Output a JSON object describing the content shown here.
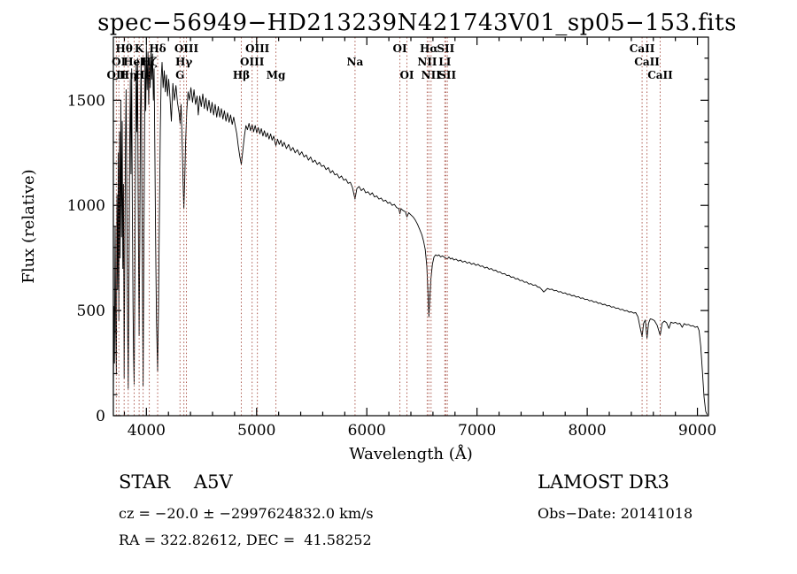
{
  "annotations": {
    "class_label": "STAR    A5V",
    "survey": "LAMOST DR3",
    "cz_line": "cz = −20.0 ± −2997624832.0 km/s",
    "obs_date": "Obs−Date: 20141018",
    "ra_dec": "RA = 322.82612, DEC =  41.58252"
  },
  "chart_data": {
    "type": "line",
    "title": "spec−56949−HD213239N421743V01_sp05−153.fits",
    "xlabel": "Wavelength (Å)",
    "ylabel": "Flux (relative)",
    "xlim": [
      3700,
      9100
    ],
    "ylim": [
      0,
      1800
    ],
    "xticks": [
      4000,
      5000,
      6000,
      7000,
      8000,
      9000
    ],
    "yticks": [
      0,
      500,
      1000,
      1500
    ],
    "x_minor_step": 200,
    "y_minor_step": 100,
    "grid": false,
    "legend": "none",
    "line_color": "#000000",
    "marker_line_color": "#a4493d",
    "spectral_lines": [
      {
        "wavelength": 3727,
        "label": "OII",
        "row": 3
      },
      {
        "wavelength": 3750,
        "label": "OI",
        "row": 2
      },
      {
        "wavelength": 3798,
        "label": "Hθ",
        "row": 1
      },
      {
        "wavelength": 3835,
        "label": "Hη",
        "row": 3
      },
      {
        "wavelength": 3889,
        "label": "HeI",
        "row": 2
      },
      {
        "wavelength": 3934,
        "label": "K",
        "row": 1
      },
      {
        "wavelength": 3970,
        "label": "Hε",
        "row": 3
      },
      {
        "wavelength": 4026,
        "label": "Hζ",
        "row": 2
      },
      {
        "wavelength": 4102,
        "label": "Hδ",
        "row": 1
      },
      {
        "wavelength": 4305,
        "label": "G",
        "row": 3
      },
      {
        "wavelength": 4340,
        "label": "Hγ",
        "row": 2
      },
      {
        "wavelength": 4363,
        "label": "OIII",
        "row": 1
      },
      {
        "wavelength": 4861,
        "label": "Hβ",
        "row": 3
      },
      {
        "wavelength": 4959,
        "label": "OIII",
        "row": 2
      },
      {
        "wavelength": 5007,
        "label": "OIII",
        "row": 1
      },
      {
        "wavelength": 5175,
        "label": "Mg",
        "row": 3
      },
      {
        "wavelength": 5893,
        "label": "Na",
        "row": 2
      },
      {
        "wavelength": 6300,
        "label": "OI",
        "row": 1
      },
      {
        "wavelength": 6364,
        "label": "OI",
        "row": 3
      },
      {
        "wavelength": 6548,
        "label": "NII",
        "row": 2
      },
      {
        "wavelength": 6563,
        "label": "Hα",
        "row": 1
      },
      {
        "wavelength": 6583,
        "label": "NII",
        "row": 3
      },
      {
        "wavelength": 6708,
        "label": "LI",
        "row": 2
      },
      {
        "wavelength": 6716,
        "label": "SII",
        "row": 1
      },
      {
        "wavelength": 6731,
        "label": "SII",
        "row": 3
      },
      {
        "wavelength": 8498,
        "label": "CaII",
        "row": 1
      },
      {
        "wavelength": 8542,
        "label": "CaII",
        "row": 2
      },
      {
        "wavelength": 8662,
        "label": "CaII",
        "row": 3
      }
    ],
    "x": [
      3700,
      3705,
      3710,
      3716,
      3722,
      3727,
      3733,
      3739,
      3745,
      3750,
      3756,
      3762,
      3768,
      3774,
      3780,
      3786,
      3792,
      3798,
      3804,
      3810,
      3816,
      3822,
      3828,
      3835,
      3842,
      3848,
      3854,
      3860,
      3866,
      3872,
      3878,
      3883,
      3889,
      3895,
      3901,
      3907,
      3913,
      3919,
      3925,
      3931,
      3934,
      3940,
      3946,
      3952,
      3958,
      3964,
      3970,
      3976,
      3982,
      3988,
      3994,
      4000,
      4007,
      4014,
      4021,
      4028,
      4035,
      4042,
      4049,
      4056,
      4063,
      4070,
      4077,
      4084,
      4091,
      4102,
      4110,
      4118,
      4126,
      4134,
      4142,
      4152,
      4162,
      4172,
      4182,
      4192,
      4202,
      4212,
      4226,
      4240,
      4254,
      4268,
      4282,
      4296,
      4305,
      4315,
      4325,
      4333,
      4340,
      4348,
      4356,
      4366,
      4378,
      4390,
      4404,
      4418,
      4432,
      4446,
      4460,
      4471,
      4484,
      4498,
      4512,
      4526,
      4540,
      4554,
      4568,
      4582,
      4596,
      4610,
      4624,
      4638,
      4652,
      4666,
      4680,
      4694,
      4708,
      4722,
      4736,
      4750,
      4764,
      4778,
      4792,
      4806,
      4820,
      4834,
      4848,
      4861,
      4875,
      4889,
      4903,
      4917,
      4931,
      4945,
      4959,
      4973,
      4987,
      5001,
      5015,
      5029,
      5043,
      5057,
      5071,
      5085,
      5099,
      5113,
      5127,
      5141,
      5155,
      5169,
      5175,
      5190,
      5205,
      5220,
      5235,
      5250,
      5270,
      5290,
      5310,
      5330,
      5350,
      5370,
      5390,
      5410,
      5430,
      5450,
      5470,
      5490,
      5510,
      5530,
      5550,
      5570,
      5590,
      5610,
      5630,
      5650,
      5670,
      5690,
      5710,
      5730,
      5750,
      5770,
      5790,
      5810,
      5830,
      5850,
      5870,
      5893,
      5910,
      5930,
      5950,
      5970,
      5990,
      6010,
      6030,
      6050,
      6070,
      6090,
      6110,
      6130,
      6150,
      6170,
      6190,
      6210,
      6230,
      6250,
      6270,
      6290,
      6300,
      6310,
      6330,
      6350,
      6364,
      6380,
      6400,
      6420,
      6440,
      6460,
      6480,
      6500,
      6515,
      6530,
      6545,
      6555,
      6563,
      6572,
      6582,
      6595,
      6610,
      6625,
      6640,
      6655,
      6670,
      6685,
      6700,
      6715,
      6730,
      6745,
      6760,
      6775,
      6790,
      6810,
      6830,
      6850,
      6870,
      6890,
      6910,
      6930,
      6950,
      6970,
      6990,
      7010,
      7030,
      7050,
      7070,
      7090,
      7110,
      7130,
      7150,
      7170,
      7190,
      7210,
      7230,
      7250,
      7270,
      7290,
      7310,
      7330,
      7350,
      7370,
      7390,
      7410,
      7430,
      7450,
      7470,
      7490,
      7510,
      7530,
      7550,
      7570,
      7590,
      7605,
      7620,
      7640,
      7660,
      7680,
      7700,
      7720,
      7740,
      7760,
      7780,
      7800,
      7820,
      7840,
      7860,
      7880,
      7900,
      7920,
      7940,
      7960,
      7980,
      8000,
      8020,
      8040,
      8060,
      8080,
      8100,
      8120,
      8140,
      8160,
      8180,
      8200,
      8220,
      8240,
      8260,
      8280,
      8300,
      8320,
      8340,
      8360,
      8380,
      8400,
      8420,
      8440,
      8460,
      8480,
      8498,
      8512,
      8527,
      8542,
      8557,
      8572,
      8590,
      8610,
      8635,
      8662,
      8680,
      8700,
      8720,
      8742,
      8760,
      8780,
      8800,
      8820,
      8840,
      8862,
      8880,
      8900,
      8920,
      8940,
      8960,
      8980,
      9000,
      9015,
      9030,
      9045,
      9060,
      9075,
      9088
    ],
    "y": [
      80,
      520,
      250,
      900,
      400,
      200,
      1050,
      600,
      1250,
      450,
      1350,
      750,
      1500,
      850,
      1400,
      700,
      1100,
      180,
      750,
      1300,
      1550,
      1000,
      550,
      130,
      700,
      1250,
      1600,
      1150,
      1650,
      1000,
      520,
      300,
      150,
      650,
      1200,
      1680,
      1350,
      1700,
      1050,
      600,
      380,
      850,
      1450,
      1700,
      1150,
      620,
      140,
      680,
      1250,
      1700,
      1450,
      1760,
      1550,
      1730,
      1480,
      1700,
      1560,
      1750,
      1600,
      1720,
      1500,
      1650,
      1250,
      800,
      450,
      210,
      520,
      950,
      1350,
      1600,
      1680,
      1560,
      1640,
      1540,
      1620,
      1520,
      1600,
      1530,
      1400,
      1580,
      1500,
      1570,
      1490,
      1440,
      1390,
      1480,
      1280,
      1100,
      985,
      1120,
      1300,
      1450,
      1540,
      1500,
      1560,
      1490,
      1550,
      1480,
      1520,
      1430,
      1520,
      1470,
      1530,
      1460,
      1510,
      1450,
      1500,
      1440,
      1490,
      1430,
      1480,
      1420,
      1470,
      1420,
      1460,
      1410,
      1450,
      1400,
      1440,
      1395,
      1430,
      1385,
      1420,
      1380,
      1340,
      1280,
      1230,
      1195,
      1260,
      1330,
      1380,
      1360,
      1390,
      1355,
      1385,
      1350,
      1380,
      1345,
      1370,
      1340,
      1365,
      1330,
      1355,
      1325,
      1345,
      1315,
      1340,
      1310,
      1330,
      1295,
      1285,
      1315,
      1290,
      1310,
      1280,
      1300,
      1270,
      1290,
      1260,
      1275,
      1250,
      1265,
      1240,
      1255,
      1230,
      1240,
      1215,
      1230,
      1205,
      1215,
      1195,
      1205,
      1185,
      1190,
      1170,
      1180,
      1155,
      1165,
      1145,
      1150,
      1130,
      1140,
      1120,
      1125,
      1105,
      1110,
      1085,
      1030,
      1080,
      1090,
      1070,
      1080,
      1060,
      1065,
      1050,
      1060,
      1040,
      1045,
      1030,
      1035,
      1020,
      1025,
      1010,
      1015,
      1000,
      1005,
      990,
      985,
      960,
      985,
      975,
      970,
      945,
      965,
      955,
      945,
      930,
      910,
      885,
      860,
      830,
      790,
      710,
      580,
      470,
      560,
      650,
      720,
      755,
      765,
      760,
      765,
      755,
      760,
      755,
      750,
      745,
      755,
      745,
      750,
      740,
      745,
      735,
      740,
      730,
      735,
      725,
      730,
      720,
      725,
      715,
      720,
      710,
      712,
      702,
      706,
      696,
      700,
      690,
      692,
      682,
      684,
      674,
      676,
      666,
      668,
      658,
      660,
      650,
      652,
      642,
      644,
      634,
      636,
      626,
      628,
      620,
      622,
      612,
      610,
      598,
      588,
      595,
      605,
      600,
      602,
      594,
      596,
      588,
      590,
      582,
      584,
      576,
      578,
      570,
      572,
      564,
      566,
      558,
      560,
      552,
      554,
      546,
      548,
      540,
      542,
      534,
      536,
      528,
      530,
      522,
      524,
      516,
      518,
      510,
      512,
      504,
      506,
      498,
      500,
      492,
      494,
      488,
      490,
      470,
      420,
      375,
      440,
      455,
      368,
      440,
      460,
      458,
      452,
      430,
      382,
      440,
      450,
      442,
      415,
      445,
      440,
      444,
      436,
      440,
      420,
      438,
      432,
      434,
      426,
      428,
      420,
      424,
      405,
      330,
      210,
      90,
      20,
      5
    ]
  }
}
